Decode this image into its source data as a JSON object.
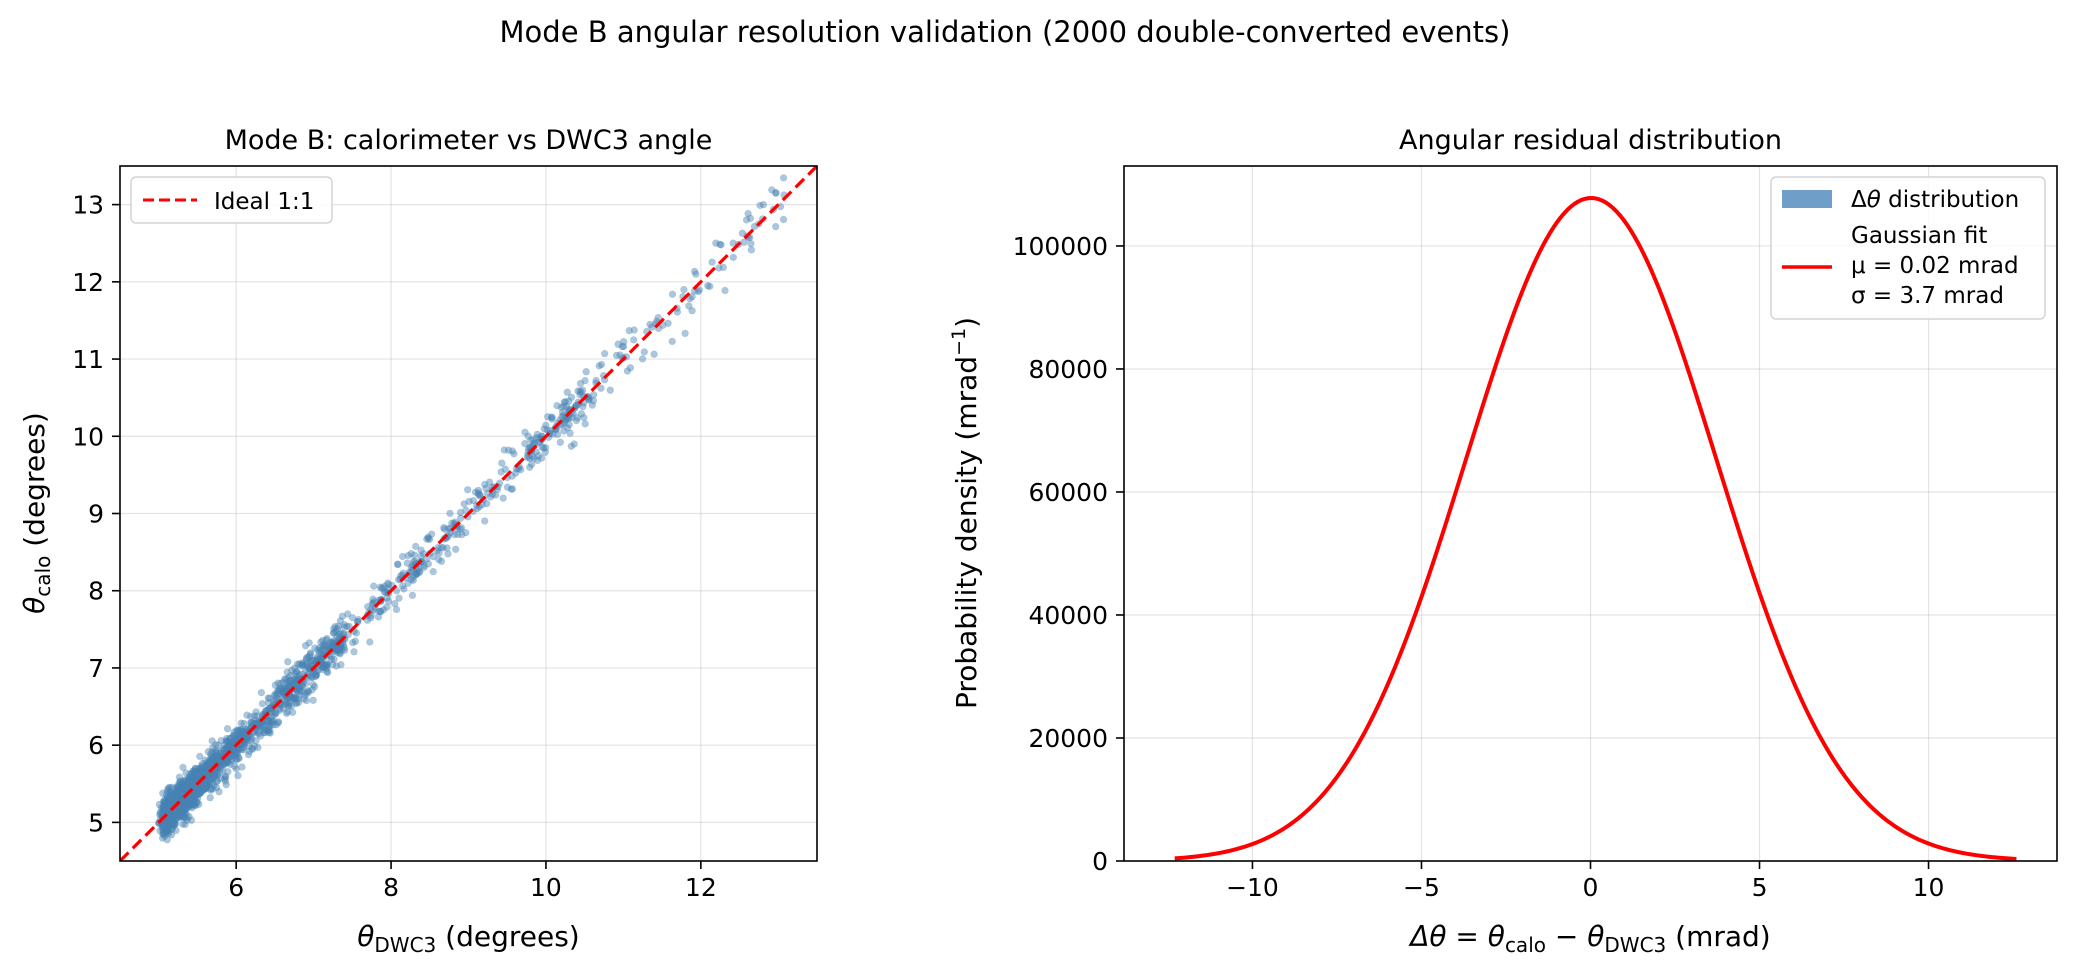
{
  "figure": {
    "suptitle": "Mode B angular resolution validation (2000 double-converted events)"
  },
  "colors": {
    "scatter": "#4682b4",
    "ideal_line": "#ff0000",
    "fit_line": "#ff0000",
    "hist_patch": "#6f9fc9",
    "grid": "#b0b0b0"
  },
  "chart_data": [
    {
      "type": "scatter",
      "title": "Mode B: calorimeter vs DWC3 angle",
      "xlabel_sym": "θ",
      "xlabel_sub": "DWC3",
      "xlabel_rest": " (degrees)",
      "ylabel_sym": "θ",
      "ylabel_sub": "calo",
      "ylabel_rest": " (degrees)",
      "xlim": [
        4.5,
        13.5
      ],
      "ylim": [
        4.5,
        13.5
      ],
      "xticks": [
        6,
        8,
        10,
        12
      ],
      "yticks": [
        5,
        6,
        7,
        8,
        9,
        10,
        11,
        12,
        13
      ],
      "grid": true,
      "legend_position": "upper-left",
      "legend": [
        {
          "label": "Ideal 1:1",
          "style": "dashed-line",
          "color": "#ff0000"
        }
      ],
      "series": [
        {
          "name": "Ideal 1:1",
          "kind": "line",
          "x": [
            4.5,
            13.5
          ],
          "y": [
            4.5,
            13.5
          ]
        }
      ],
      "points": {
        "count": 2000,
        "x_range": [
          5.0,
          13.1
        ],
        "relation": "y = x + gaussian noise",
        "noise_sigma_deg": 0.15,
        "density": "concentrated near x = 5.0–6.0, sparse above x = 10"
      }
    },
    {
      "type": "line",
      "title": "Angular residual distribution",
      "xlabel_pre": "Δθ = θ",
      "xlabel_sub1": "calo",
      "xlabel_mid": " − θ",
      "xlabel_sub2": "DWC3",
      "xlabel_rest": " (mrad)",
      "ylabel_pre": "Probability density (mrad",
      "ylabel_sup": "−1",
      "ylabel_rest": ")",
      "xlim": [
        -13.8,
        13.8
      ],
      "ylim": [
        0,
        113000
      ],
      "xticks": [
        -10,
        -5,
        0,
        5,
        10
      ],
      "yticks": [
        0,
        20000,
        40000,
        60000,
        80000,
        100000
      ],
      "grid": true,
      "legend_position": "upper-right",
      "legend": [
        {
          "label": "Δθ distribution",
          "style": "patch",
          "color": "#6f9fc9"
        },
        {
          "lines": [
            "Gaussian fit",
            "μ = 0.02 mrad",
            "σ = 3.7 mrad"
          ],
          "style": "solid-line",
          "color": "#ff0000"
        }
      ],
      "series": [
        {
          "name": "Gaussian fit",
          "kind": "gaussian",
          "mu": 0.02,
          "sigma": 3.7,
          "peak": 107800,
          "x_range": [
            -12.3,
            12.6
          ]
        }
      ]
    }
  ]
}
